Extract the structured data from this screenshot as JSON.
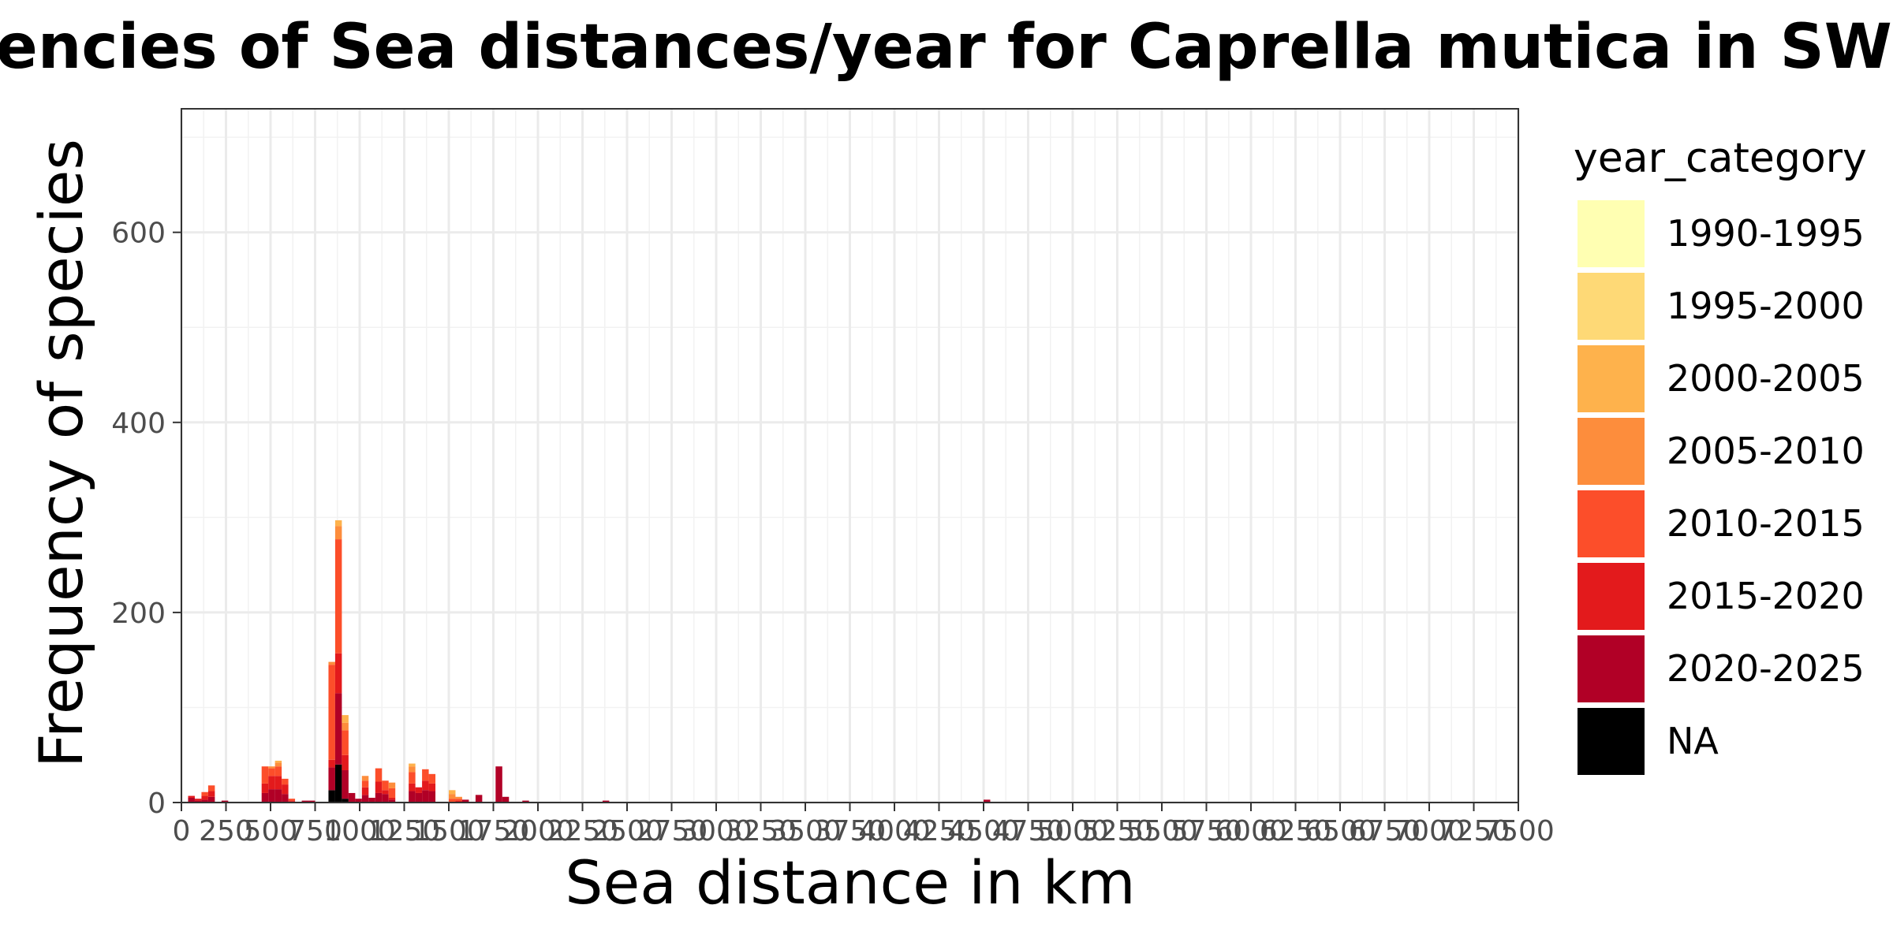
{
  "chart_data": {
    "type": "bar",
    "stacked": true,
    "title": "Frequencies of Sea distances/year for Caprella mutica in SWC",
    "xlabel": "Sea distance in km",
    "ylabel": "Frequency of species",
    "xlim": [
      0,
      7500
    ],
    "ylim": [
      0,
      730
    ],
    "x_ticks": [
      0,
      250,
      500,
      750,
      1000,
      1250,
      1500,
      1750,
      2000,
      2250,
      2500,
      2750,
      3000,
      3250,
      3500,
      3750,
      4000,
      4250,
      4500,
      4750,
      5000,
      5250,
      5500,
      5750,
      6000,
      6250,
      6500,
      6750,
      7000,
      7250,
      7500
    ],
    "x_tick_labels": [
      "0",
      "250",
      "500",
      "750",
      "1000",
      "1250",
      "1500",
      "1750",
      "2000",
      "2250",
      "2500",
      "2750",
      "3000",
      "3250",
      "3500",
      "3750",
      "4000",
      "4250",
      "4500",
      "4750",
      "5000",
      "5250",
      "5500",
      "5750",
      "6000",
      "6250",
      "6500",
      "6750",
      "7000",
      "7250",
      "7500"
    ],
    "y_ticks": [
      0,
      200,
      400,
      600
    ],
    "y_tick_labels": [
      "0",
      "200",
      "400",
      "600"
    ],
    "bin_width": 37.5,
    "grid": true,
    "legend_title": "year_category",
    "legend_position": "right",
    "categories": [
      "1990-1995",
      "1995-2000",
      "2000-2005",
      "2005-2010",
      "2010-2015",
      "2015-2020",
      "2020-2025",
      "NA"
    ],
    "colors": [
      "#FFFFB2",
      "#FED976",
      "#FEB24C",
      "#FD8D3C",
      "#FC4E2A",
      "#E31A1C",
      "#B10026",
      "#000000"
    ],
    "bins": [
      {
        "x": 18.75,
        "counts": [
          0,
          0,
          0,
          0,
          0,
          0,
          0,
          0
        ]
      },
      {
        "x": 56.25,
        "counts": [
          0,
          0,
          0,
          0,
          0,
          2,
          5,
          0
        ]
      },
      {
        "x": 93.75,
        "counts": [
          0,
          0,
          0,
          0,
          0,
          2,
          2,
          0
        ]
      },
      {
        "x": 131.25,
        "counts": [
          0,
          0,
          0,
          0,
          4,
          4,
          3,
          0
        ]
      },
      {
        "x": 168.75,
        "counts": [
          0,
          0,
          0,
          0,
          6,
          6,
          6,
          0
        ]
      },
      {
        "x": 206.25,
        "counts": [
          0,
          0,
          0,
          0,
          0,
          0,
          0,
          0
        ]
      },
      {
        "x": 243.75,
        "counts": [
          0,
          0,
          0,
          0,
          0,
          0,
          2,
          0
        ]
      },
      {
        "x": 281.25,
        "counts": [
          0,
          0,
          0,
          0,
          0,
          0,
          0,
          0
        ]
      },
      {
        "x": 318.75,
        "counts": [
          0,
          0,
          0,
          0,
          0,
          0,
          0,
          0
        ]
      },
      {
        "x": 356.25,
        "counts": [
          0,
          0,
          0,
          0,
          0,
          0,
          0,
          0
        ]
      },
      {
        "x": 393.75,
        "counts": [
          0,
          0,
          0,
          0,
          0,
          0,
          0,
          0
        ]
      },
      {
        "x": 431.25,
        "counts": [
          0,
          0,
          0,
          0,
          0,
          0,
          0,
          0
        ]
      },
      {
        "x": 468.75,
        "counts": [
          0,
          0,
          0,
          0,
          18,
          10,
          10,
          0
        ]
      },
      {
        "x": 506.25,
        "counts": [
          0,
          0,
          0,
          2,
          8,
          14,
          14,
          0
        ]
      },
      {
        "x": 543.75,
        "counts": [
          0,
          0,
          2,
          4,
          10,
          14,
          14,
          0
        ]
      },
      {
        "x": 581.25,
        "counts": [
          0,
          0,
          0,
          0,
          6,
          10,
          9,
          0
        ]
      },
      {
        "x": 618.75,
        "counts": [
          0,
          0,
          0,
          0,
          2,
          1,
          1,
          0
        ]
      },
      {
        "x": 656.25,
        "counts": [
          0,
          0,
          0,
          0,
          0,
          0,
          0,
          0
        ]
      },
      {
        "x": 693.75,
        "counts": [
          0,
          0,
          0,
          0,
          0,
          0,
          2,
          0
        ]
      },
      {
        "x": 731.25,
        "counts": [
          0,
          0,
          0,
          0,
          0,
          0,
          2,
          0
        ]
      },
      {
        "x": 768.75,
        "counts": [
          0,
          0,
          0,
          0,
          0,
          0,
          0,
          0
        ]
      },
      {
        "x": 806.25,
        "counts": [
          0,
          0,
          0,
          0,
          0,
          0,
          0,
          0
        ]
      },
      {
        "x": 843.75,
        "counts": [
          0,
          0,
          0,
          3,
          100,
          8,
          24,
          13
        ]
      },
      {
        "x": 881.25,
        "counts": [
          0,
          0,
          6,
          14,
          120,
          42,
          75,
          40
        ]
      },
      {
        "x": 918.75,
        "counts": [
          0,
          0,
          8,
          8,
          26,
          16,
          30,
          4
        ]
      },
      {
        "x": 956.25,
        "counts": [
          0,
          0,
          0,
          0,
          0,
          0,
          10,
          0
        ]
      },
      {
        "x": 993.75,
        "counts": [
          0,
          0,
          0,
          0,
          0,
          0,
          4,
          0
        ]
      },
      {
        "x": 1031.25,
        "counts": [
          0,
          0,
          0,
          5,
          7,
          8,
          8,
          0
        ]
      },
      {
        "x": 1068.75,
        "counts": [
          0,
          0,
          0,
          0,
          0,
          0,
          5,
          0
        ]
      },
      {
        "x": 1106.25,
        "counts": [
          0,
          0,
          0,
          0,
          14,
          12,
          10,
          0
        ]
      },
      {
        "x": 1143.75,
        "counts": [
          0,
          0,
          0,
          0,
          10,
          4,
          9,
          0
        ]
      },
      {
        "x": 1181.25,
        "counts": [
          0,
          0,
          0,
          6,
          10,
          2,
          3,
          0
        ]
      },
      {
        "x": 1218.75,
        "counts": [
          0,
          0,
          0,
          0,
          0,
          0,
          0,
          0
        ]
      },
      {
        "x": 1256.25,
        "counts": [
          0,
          0,
          0,
          0,
          0,
          0,
          0,
          0
        ]
      },
      {
        "x": 1293.75,
        "counts": [
          0,
          0,
          3,
          6,
          12,
          8,
          12,
          0
        ]
      },
      {
        "x": 1331.25,
        "counts": [
          0,
          0,
          0,
          0,
          0,
          6,
          10,
          0
        ]
      },
      {
        "x": 1368.75,
        "counts": [
          0,
          0,
          0,
          0,
          12,
          10,
          13,
          0
        ]
      },
      {
        "x": 1406.25,
        "counts": [
          0,
          0,
          0,
          0,
          10,
          8,
          12,
          0
        ]
      },
      {
        "x": 1443.75,
        "counts": [
          0,
          0,
          0,
          0,
          0,
          0,
          0,
          0
        ]
      },
      {
        "x": 1481.25,
        "counts": [
          0,
          0,
          0,
          0,
          0,
          0,
          0,
          0
        ]
      },
      {
        "x": 1518.75,
        "counts": [
          0,
          0,
          4,
          5,
          4,
          0,
          0,
          0
        ]
      },
      {
        "x": 1556.25,
        "counts": [
          0,
          0,
          0,
          2,
          2,
          2,
          0,
          0
        ]
      },
      {
        "x": 1593.75,
        "counts": [
          0,
          0,
          0,
          0,
          0,
          0,
          3,
          0
        ]
      },
      {
        "x": 1631.25,
        "counts": [
          0,
          0,
          0,
          0,
          0,
          0,
          0,
          0
        ]
      },
      {
        "x": 1668.75,
        "counts": [
          0,
          0,
          0,
          0,
          0,
          0,
          8,
          0
        ]
      },
      {
        "x": 1706.25,
        "counts": [
          0,
          0,
          0,
          0,
          0,
          0,
          0,
          0
        ]
      },
      {
        "x": 1743.75,
        "counts": [
          0,
          0,
          0,
          0,
          0,
          0,
          0,
          0
        ]
      },
      {
        "x": 1781.25,
        "counts": [
          0,
          0,
          0,
          0,
          0,
          0,
          38,
          0
        ]
      },
      {
        "x": 1818.75,
        "counts": [
          0,
          0,
          0,
          0,
          0,
          0,
          6,
          0
        ]
      },
      {
        "x": 1856.25,
        "counts": [
          0,
          0,
          0,
          0,
          0,
          0,
          0,
          0
        ]
      },
      {
        "x": 1893.75,
        "counts": [
          0,
          0,
          0,
          0,
          0,
          0,
          0,
          0
        ]
      },
      {
        "x": 1931.25,
        "counts": [
          0,
          0,
          0,
          0,
          0,
          0,
          2,
          0
        ]
      },
      {
        "x": 2381.25,
        "counts": [
          0,
          0,
          0,
          0,
          0,
          0,
          2,
          0
        ]
      },
      {
        "x": 4518.75,
        "counts": [
          0,
          0,
          0,
          0,
          0,
          0,
          3,
          0
        ]
      }
    ]
  }
}
